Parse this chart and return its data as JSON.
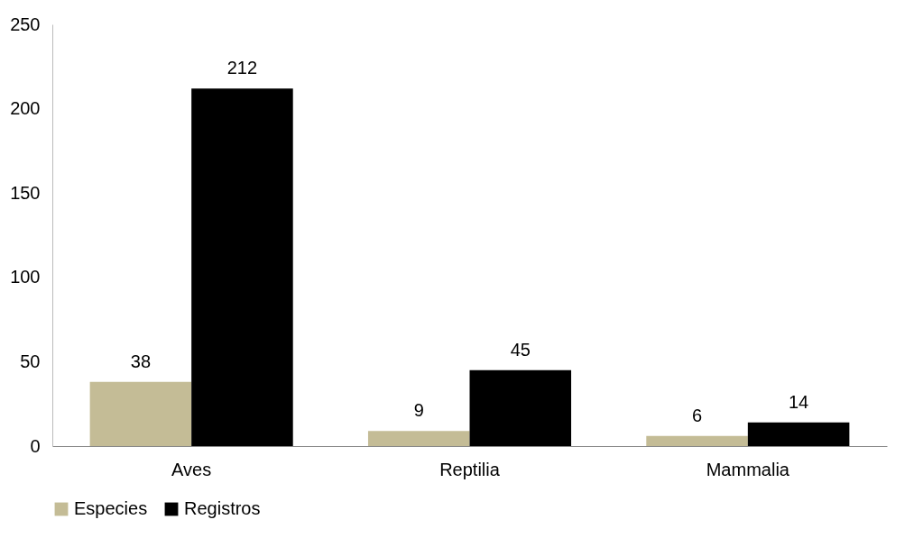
{
  "chart_data": {
    "type": "bar",
    "categories": [
      "Aves",
      "Reptilia",
      "Mammalia"
    ],
    "series": [
      {
        "name": "Especies",
        "color": "#c4bc96",
        "values": [
          38,
          9,
          6
        ]
      },
      {
        "name": "Registros",
        "color": "#000000",
        "values": [
          212,
          45,
          14
        ]
      }
    ],
    "ylim": [
      0,
      250
    ],
    "yticks": [
      0,
      50,
      100,
      150,
      200,
      250
    ],
    "grid": false,
    "legend": "bottom",
    "data_labels": true
  }
}
